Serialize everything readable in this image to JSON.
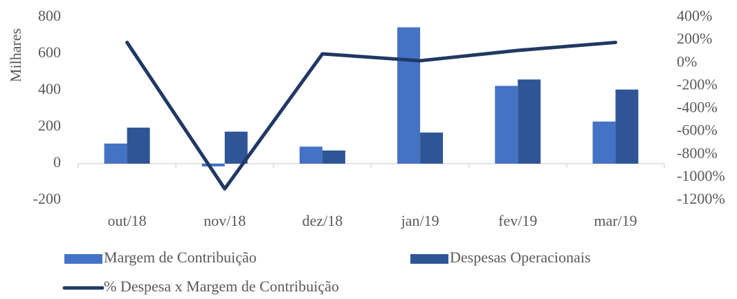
{
  "chart_data": {
    "type": "bar-line",
    "y_axis_label": "Milhares",
    "categories": [
      "out/18",
      "nov/18",
      "dez/18",
      "jan/19",
      "fev/19",
      "mar/19"
    ],
    "series": [
      {
        "name": "Margem de Contribuição",
        "color": "#4472c4",
        "type": "bar",
        "values": [
          110,
          -15,
          93,
          745,
          425,
          230
        ]
      },
      {
        "name": "Despesas Operacionais",
        "color": "#2f5597",
        "type": "bar",
        "values": [
          197,
          175,
          72,
          170,
          460,
          405
        ]
      },
      {
        "name": "% Despesa x Margem de Contribuição",
        "color": "#203864",
        "type": "line",
        "axis": "y2",
        "values": [
          180,
          -1100,
          80,
          20,
          110,
          180
        ]
      }
    ],
    "ylim": [
      -200,
      800
    ],
    "yticks": [
      -200,
      0,
      200,
      400,
      600,
      800
    ],
    "y2lim": [
      -1200,
      400
    ],
    "y2ticks": [
      {
        "value": -1200,
        "label": "-1200%"
      },
      {
        "value": -1000,
        "label": "-1000%"
      },
      {
        "value": -800,
        "label": "-800%"
      },
      {
        "value": -600,
        "label": "-600%"
      },
      {
        "value": -400,
        "label": "-400%"
      },
      {
        "value": -200,
        "label": "-200%"
      },
      {
        "value": 0,
        "label": "0%"
      },
      {
        "value": 200,
        "label": "200%"
      },
      {
        "value": 400,
        "label": "400%"
      }
    ],
    "grid": false,
    "legend": "bottom"
  }
}
